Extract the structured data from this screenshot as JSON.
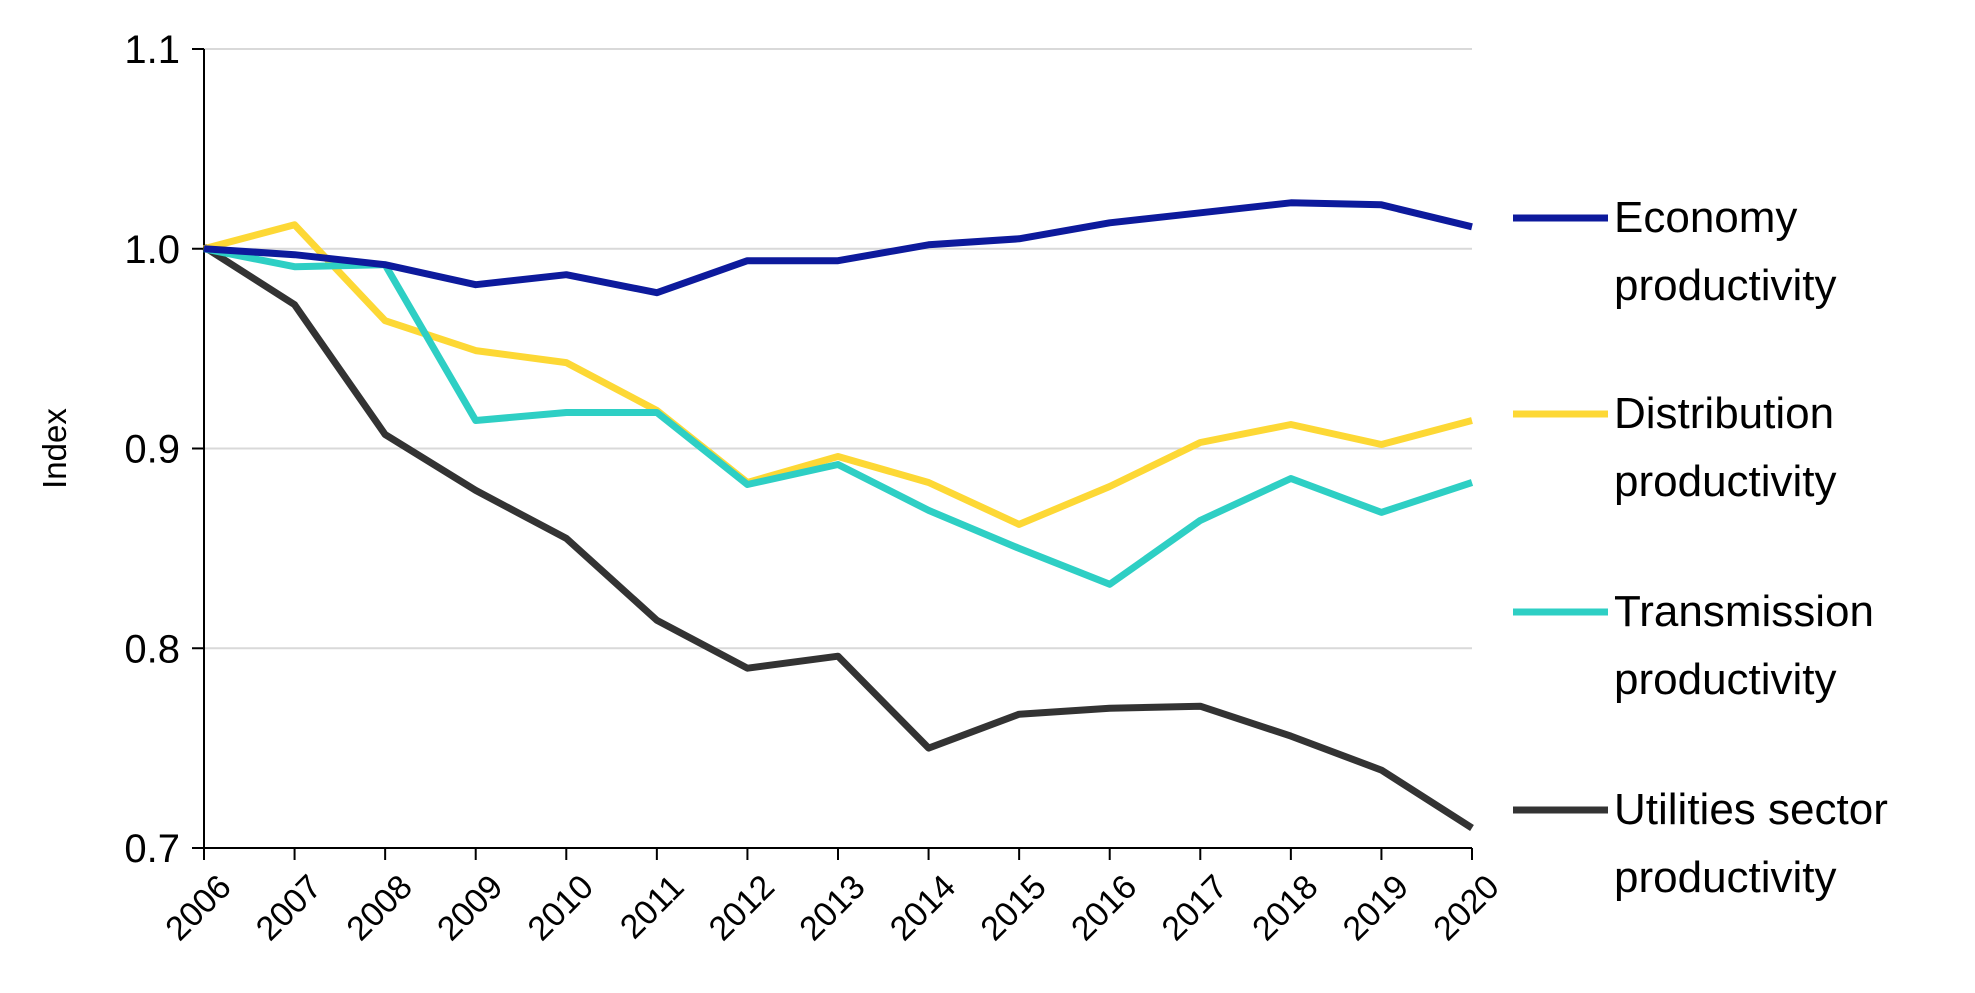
{
  "chart_data": {
    "type": "line",
    "title": "",
    "xlabel": "",
    "ylabel": "Index",
    "ylim": [
      0.7,
      1.1
    ],
    "yticks": [
      "0.7",
      "0.8",
      "0.9",
      "1.0",
      "1.1"
    ],
    "grid": true,
    "legend_position": "right",
    "x": [
      "2006",
      "2007",
      "2008",
      "2009",
      "2010",
      "2011",
      "2012",
      "2013",
      "2014",
      "2015",
      "2016",
      "2017",
      "2018",
      "2019",
      "2020"
    ],
    "series": [
      {
        "name": "Economy productivity",
        "legend_lines": [
          "Economy",
          "productivity"
        ],
        "color": "#0d1a9c",
        "values": [
          1.0,
          0.997,
          0.992,
          0.982,
          0.987,
          0.978,
          0.994,
          0.994,
          1.002,
          1.005,
          1.013,
          1.018,
          1.023,
          1.022,
          1.011
        ]
      },
      {
        "name": "Distribution productivity",
        "legend_lines": [
          "Distribution",
          "productivity"
        ],
        "color": "#fdd835",
        "values": [
          1.0,
          1.012,
          0.964,
          0.949,
          0.943,
          0.919,
          0.883,
          0.896,
          0.883,
          0.862,
          0.881,
          0.903,
          0.912,
          0.902,
          0.914
        ]
      },
      {
        "name": "Transmission productivity",
        "legend_lines": [
          "Transmission",
          "productivity"
        ],
        "color": "#2ecfc4",
        "values": [
          1.0,
          0.991,
          0.992,
          0.914,
          0.918,
          0.918,
          0.882,
          0.892,
          0.869,
          0.85,
          0.832,
          0.864,
          0.885,
          0.868,
          0.883
        ]
      },
      {
        "name": "Utilities sector productivity",
        "legend_lines": [
          "Utilities sector",
          "productivity"
        ],
        "color": "#333333",
        "values": [
          1.001,
          0.972,
          0.907,
          0.879,
          0.855,
          0.814,
          0.79,
          0.796,
          0.75,
          0.767,
          0.77,
          0.771,
          0.756,
          0.739,
          0.71
        ]
      }
    ]
  }
}
